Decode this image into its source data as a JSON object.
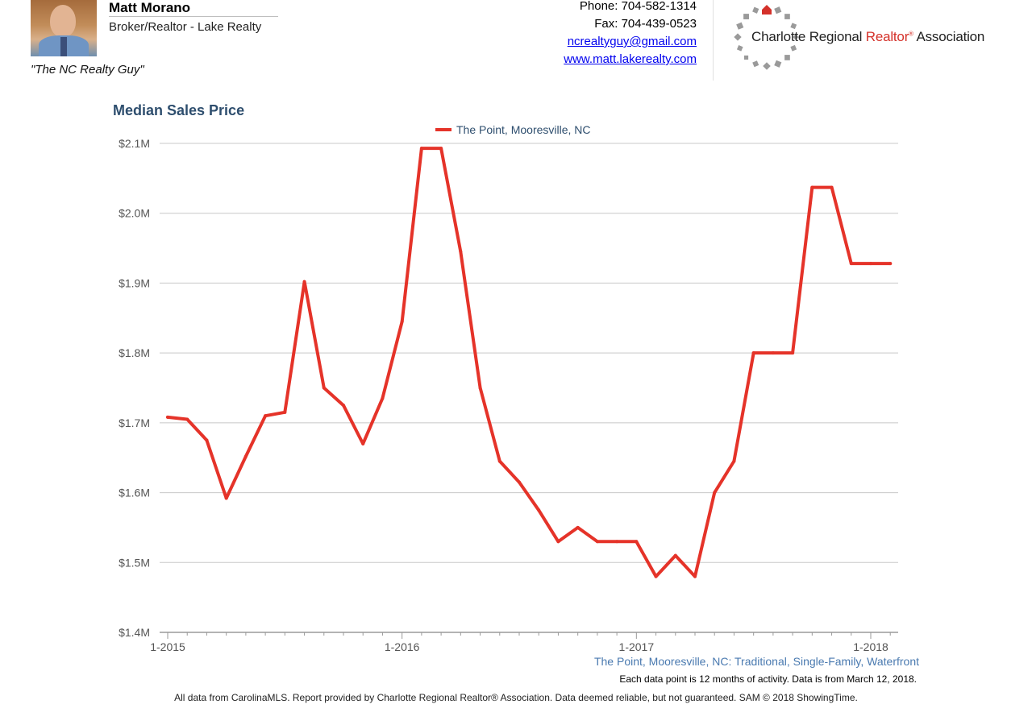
{
  "header": {
    "agent_name": "Matt Morano",
    "agent_title": "Broker/Realtor - Lake Realty",
    "tagline": "\"The NC Realty Guy\"",
    "phone": "Phone: 704-582-1314",
    "fax": "Fax: 704-439-0523",
    "email": "ncrealtyguy@gmail.com",
    "website": "www.matt.lakerealty.com",
    "association_name": "Charlotte Regional",
    "association_realtor": "Realtor",
    "association_reg": "®",
    "association_suffix": "Association"
  },
  "colors": {
    "series_line": "#e53329",
    "title": "#2e4e6e",
    "caption": "#4a7ab0",
    "grid": "#c8c8c8",
    "logo_dots": "#9a9a9a",
    "logo_house": "#d4312a"
  },
  "chart_data": {
    "type": "line",
    "title": "Median Sales Price",
    "x_dates": [
      "2015-01",
      "2015-02",
      "2015-03",
      "2015-04",
      "2015-05",
      "2015-06",
      "2015-07",
      "2015-08",
      "2015-09",
      "2015-10",
      "2015-11",
      "2015-12",
      "2016-01",
      "2016-02",
      "2016-03",
      "2016-04",
      "2016-05",
      "2016-06",
      "2016-07",
      "2016-08",
      "2016-09",
      "2016-10",
      "2016-11",
      "2016-12",
      "2017-01",
      "2017-02",
      "2017-03",
      "2017-04",
      "2017-05",
      "2017-06",
      "2017-07",
      "2017-08",
      "2017-09",
      "2017-10",
      "2017-11",
      "2017-12",
      "2018-01",
      "2018-02"
    ],
    "series": [
      {
        "name": "The Point, Mooresville, NC",
        "values": [
          1708000,
          1705000,
          1675000,
          1592000,
          1652000,
          1710000,
          1715000,
          1902000,
          1750000,
          1725000,
          1670000,
          1735000,
          1845000,
          2093000,
          2093000,
          1945000,
          1750000,
          1645000,
          1615000,
          1575000,
          1530000,
          1550000,
          1530000,
          1530000,
          1530000,
          1480000,
          1510000,
          1480000,
          1600000,
          1645000,
          1800000,
          1800000,
          1800000,
          2037000,
          2037000,
          1928000,
          1928000,
          1928000
        ]
      }
    ],
    "x_ticks": [
      "1-2015",
      "1-2016",
      "1-2017",
      "1-2018"
    ],
    "y_ticks": [
      "$1.4M",
      "$1.5M",
      "$1.6M",
      "$1.7M",
      "$1.8M",
      "$1.9M",
      "$2.0M",
      "$2.1M"
    ],
    "ylim": [
      1400000,
      2100000
    ],
    "grid": true,
    "legend_position": "top-center",
    "caption": "The Point, Mooresville, NC: Traditional, Single-Family, Waterfront",
    "note": "Each data point is 12 months of activity. Data is from March 12, 2018."
  },
  "footer": {
    "disclaimer": "All data from CarolinaMLS. Report provided by Charlotte Regional Realtor® Association. Data deemed reliable, but not guaranteed. SAM © 2018 ShowingTime."
  }
}
